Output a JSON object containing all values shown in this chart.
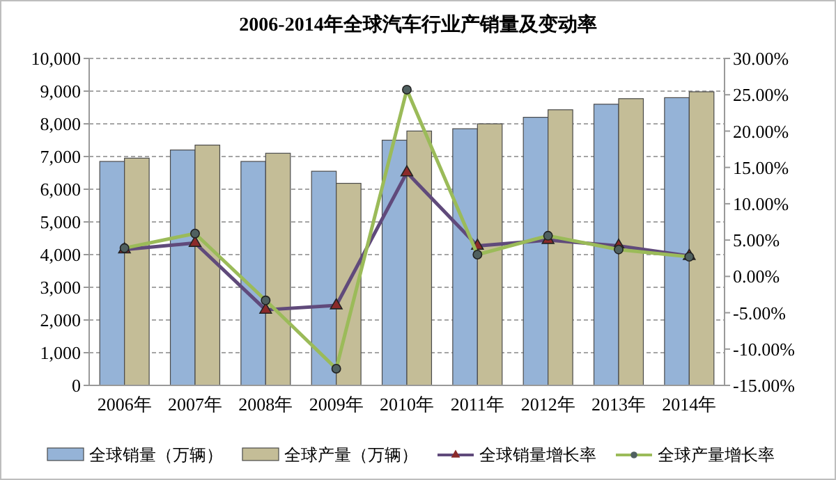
{
  "chart_data": {
    "type": "bar",
    "title": "2006-2014年全球汽车行业产销量及变动率",
    "categories": [
      "2006年",
      "2007年",
      "2008年",
      "2009年",
      "2010年",
      "2011年",
      "2012年",
      "2013年",
      "2014年"
    ],
    "series": [
      {
        "name": "全球销量（万辆）",
        "color": "#95b3d7",
        "values": [
          6850,
          7200,
          6850,
          6550,
          7500,
          7850,
          8200,
          8600,
          8800
        ]
      },
      {
        "name": "全球产量（万辆）",
        "color": "#c4bd97",
        "values": [
          6950,
          7350,
          7100,
          6180,
          7780,
          8000,
          8430,
          8770,
          8980
        ]
      },
      {
        "name": "全球销量增长率",
        "type": "line",
        "axis": "y2",
        "marker": "triangle",
        "color": "#604a7b",
        "values": [
          3.7,
          4.6,
          -4.6,
          -4.0,
          14.3,
          4.2,
          5.0,
          4.2,
          2.8
        ]
      },
      {
        "name": "全球产量增长率",
        "type": "line",
        "axis": "y2",
        "marker": "circle",
        "color": "#9bbb59",
        "values": [
          3.9,
          5.9,
          -3.3,
          -12.7,
          25.7,
          3.0,
          5.6,
          3.7,
          2.7
        ]
      }
    ],
    "ylim": [
      0,
      10000
    ],
    "yticks": [
      {
        "value": 0,
        "label": "0"
      },
      {
        "value": 1000,
        "label": "1,000"
      },
      {
        "value": 2000,
        "label": "2,000"
      },
      {
        "value": 3000,
        "label": "3,000"
      },
      {
        "value": 4000,
        "label": "4,000"
      },
      {
        "value": 5000,
        "label": "5,000"
      },
      {
        "value": 6000,
        "label": "6,000"
      },
      {
        "value": 7000,
        "label": "7,000"
      },
      {
        "value": 8000,
        "label": "8,000"
      },
      {
        "value": 9000,
        "label": "9,000"
      },
      {
        "value": 10000,
        "label": "10,000"
      }
    ],
    "y2lim": [
      -15,
      30
    ],
    "y2ticks": [
      {
        "value": -15,
        "label": "-15.00%"
      },
      {
        "value": -10,
        "label": "-10.00%"
      },
      {
        "value": -5,
        "label": "-5.00%"
      },
      {
        "value": 0,
        "label": "0.00%"
      },
      {
        "value": 5,
        "label": "5.00%"
      },
      {
        "value": 10,
        "label": "10.00%"
      },
      {
        "value": 15,
        "label": "15.00%"
      },
      {
        "value": 20,
        "label": "20.00%"
      },
      {
        "value": 25,
        "label": "25.00%"
      },
      {
        "value": 30,
        "label": "30.00%"
      }
    ],
    "grid": "y",
    "legend": "bottom"
  }
}
